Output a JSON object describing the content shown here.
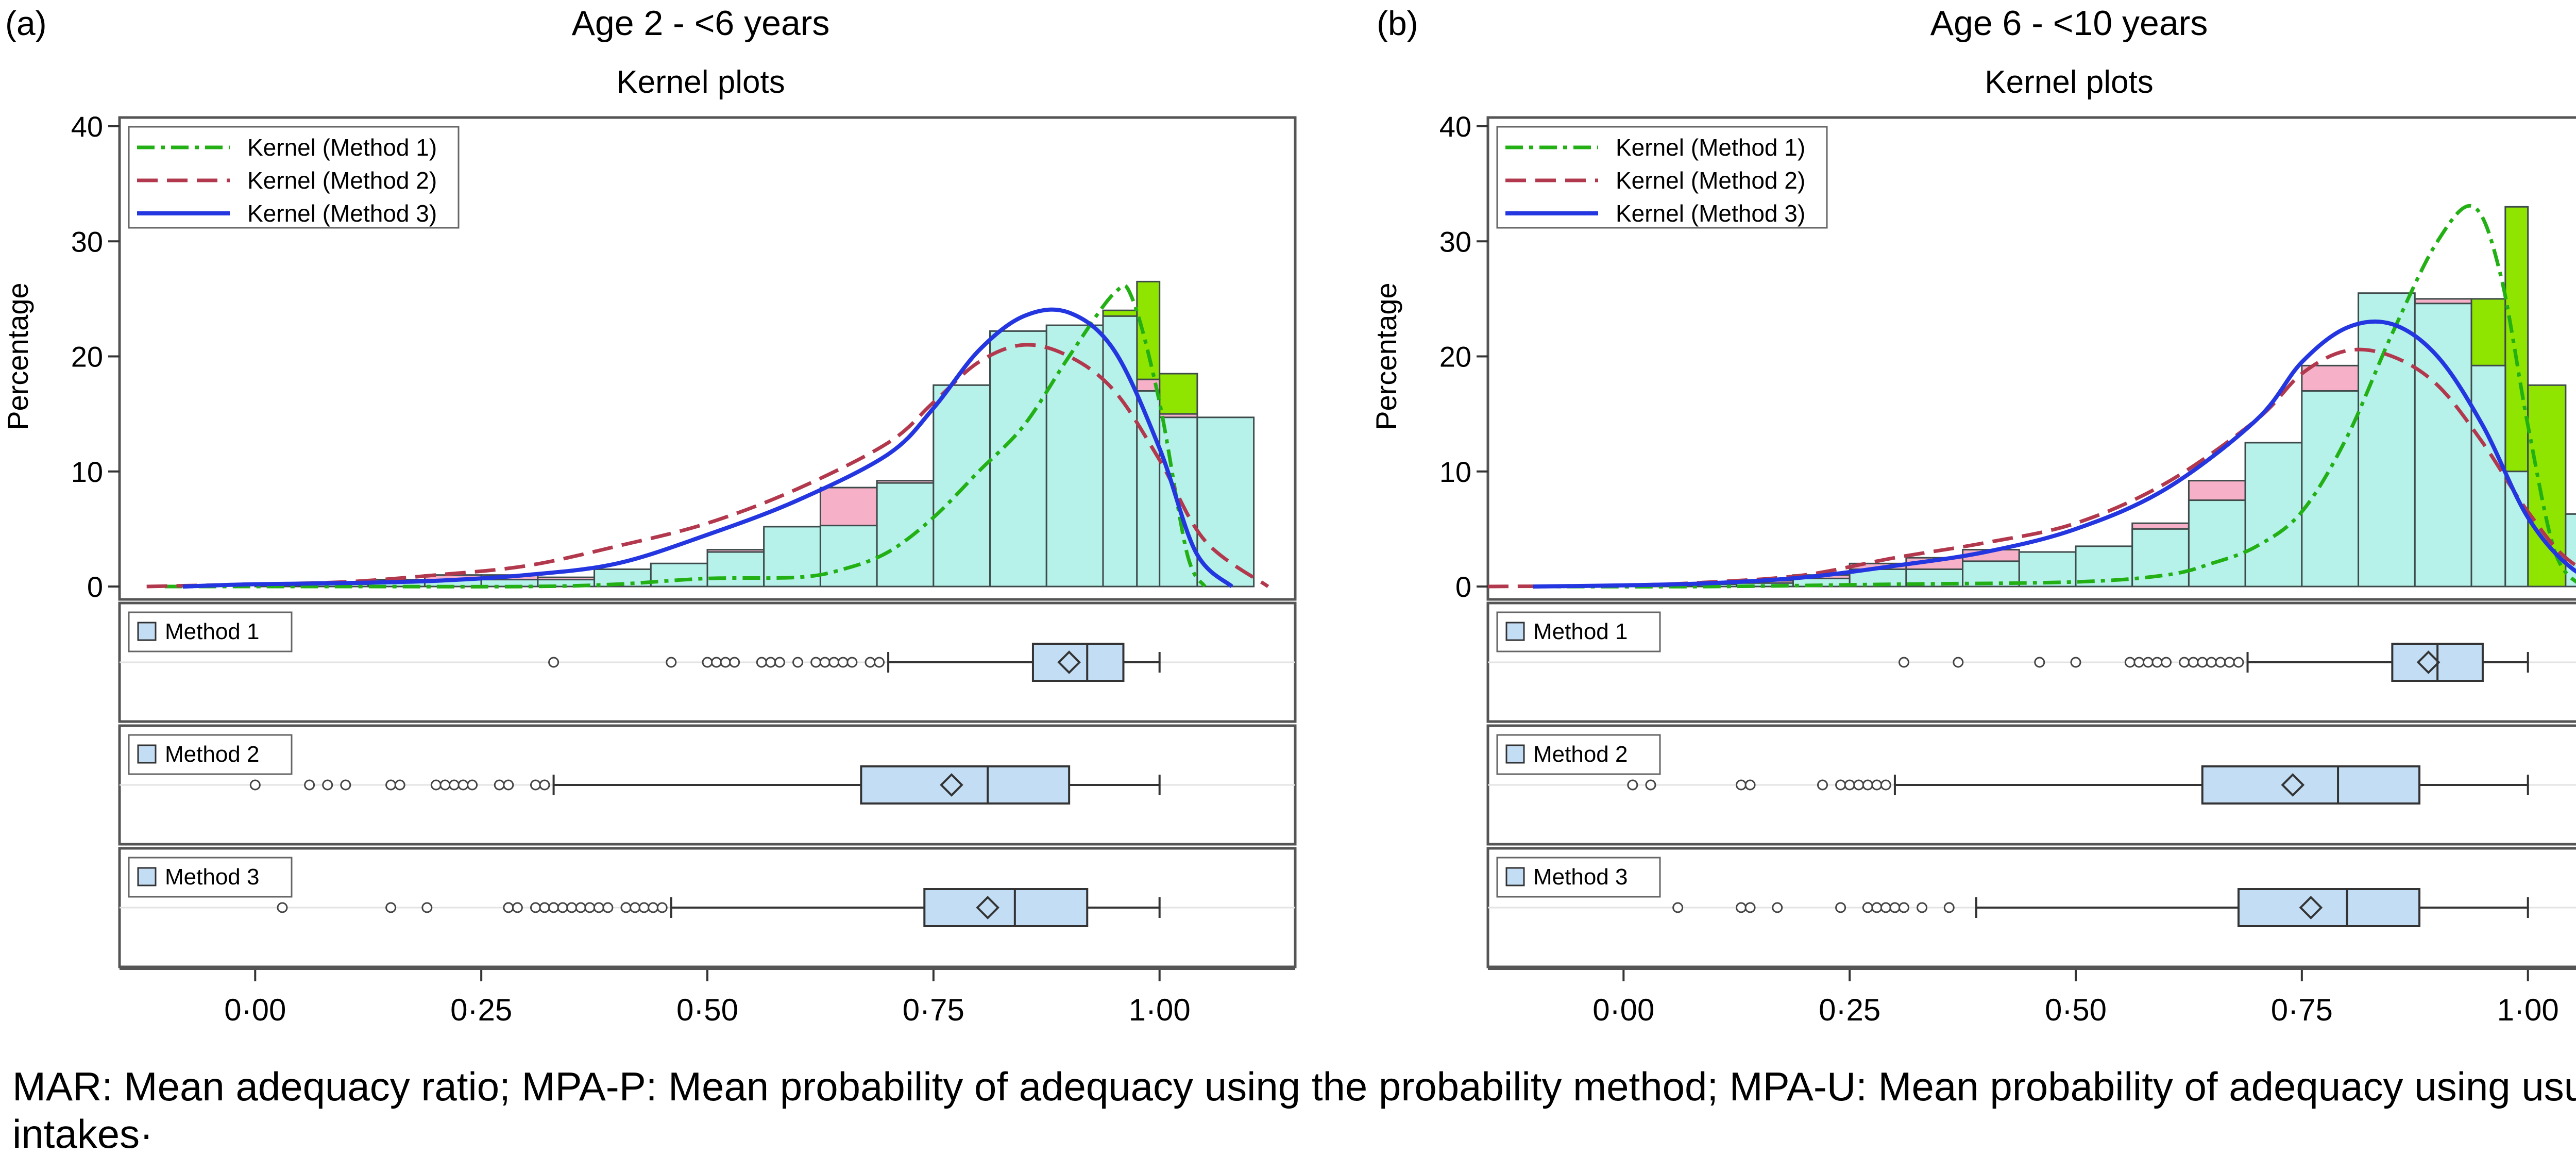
{
  "colors": {
    "method1": "#22b014",
    "method2": "#b2394d",
    "method3": "#2336e0",
    "bar_method1": "#8fe400",
    "bar_method2": "#f6b1c9",
    "bar_method3": "#b6f1ea",
    "box_fill": "#c3ddf4"
  },
  "caption": "MAR: Mean adequacy ratio; MPA-P: Mean probability of adequacy using the probability method; MPA-U: Mean probability of adequacy using usual intakes·",
  "chart_data": [
    {
      "type": "bar",
      "panel_label": "(a)",
      "title": "Age 2 - <6 years",
      "subtitle": "Kernel plots",
      "ylabel": "Percentage",
      "xlabel": "",
      "xlim": [
        -0.15,
        1.15
      ],
      "ylim": [
        0,
        40
      ],
      "y_ticks": [
        0,
        10,
        20,
        30,
        40
      ],
      "x_ticks": [
        0,
        0.25,
        0.5,
        0.75,
        1.0
      ],
      "x_tick_labels": [
        "0·00",
        "0·25",
        "0·50",
        "0·75",
        "1·00"
      ],
      "legend": [
        "Kernel (Method 1)",
        "Kernel (Method 2)",
        "Kernel (Method 3)"
      ],
      "legend_position": "top-left",
      "bin_edges": [
        0.0,
        0.0625,
        0.125,
        0.1875,
        0.25,
        0.3125,
        0.375,
        0.4375,
        0.5,
        0.5625,
        0.625,
        0.6875,
        0.75,
        0.8125,
        0.875,
        0.9375,
        0.975,
        1.0,
        1.0417
      ],
      "histograms": [
        {
          "name": "Method 1",
          "values": [
            0.0,
            0.0,
            0.0,
            0.0,
            0.0,
            0.0,
            0.2,
            0.2,
            0.6,
            0.8,
            1.0,
            2.0,
            4.0,
            8.0,
            16.0,
            24.0,
            26.5,
            18.5,
            0.0
          ]
        },
        {
          "name": "Method 2",
          "values": [
            0.2,
            0.4,
            0.6,
            1.0,
            1.0,
            0.8,
            1.5,
            2.0,
            3.2,
            5.0,
            8.6,
            9.2,
            17.5,
            21.8,
            22.7,
            20.0,
            18.0,
            15.0,
            0.0
          ]
        },
        {
          "name": "Method 3",
          "values": [
            0.1,
            0.2,
            0.4,
            0.6,
            0.6,
            0.6,
            1.5,
            2.0,
            3.0,
            5.2,
            5.3,
            9.0,
            17.5,
            22.2,
            22.7,
            23.5,
            17.0,
            14.7,
            14.7
          ]
        }
      ],
      "kernels": [
        {
          "name": "Kernel (Method 1)",
          "x": [
            -0.1,
            0.1,
            0.3,
            0.4,
            0.5,
            0.6,
            0.65,
            0.7,
            0.75,
            0.8,
            0.85,
            0.9,
            0.95,
            0.97,
            1.0,
            1.03,
            1.05
          ],
          "y": [
            0.0,
            0.0,
            0.0,
            0.2,
            0.7,
            0.8,
            1.5,
            3.0,
            6.0,
            10.0,
            14.0,
            20.0,
            25.5,
            25.0,
            16.0,
            3.0,
            0.0
          ]
        },
        {
          "name": "Kernel (Method 2)",
          "x": [
            -0.12,
            0.0,
            0.1,
            0.2,
            0.3,
            0.4,
            0.5,
            0.6,
            0.7,
            0.75,
            0.8,
            0.85,
            0.9,
            0.95,
            1.0,
            1.05,
            1.12
          ],
          "y": [
            0.0,
            0.2,
            0.4,
            1.0,
            1.8,
            3.5,
            5.5,
            8.5,
            12.5,
            16.0,
            19.5,
            21.0,
            20.0,
            17.0,
            11.0,
            4.0,
            0.0
          ]
        },
        {
          "name": "Kernel (Method 3)",
          "x": [
            -0.08,
            0.0,
            0.1,
            0.2,
            0.3,
            0.4,
            0.5,
            0.6,
            0.7,
            0.75,
            0.8,
            0.85,
            0.9,
            0.95,
            1.0,
            1.04,
            1.08
          ],
          "y": [
            0.0,
            0.2,
            0.3,
            0.5,
            1.0,
            2.0,
            4.5,
            7.5,
            11.5,
            15.5,
            20.5,
            23.5,
            23.8,
            20.5,
            12.0,
            3.0,
            0.0
          ]
        }
      ],
      "boxplots": [
        {
          "name": "Method 1",
          "whisker_low": 0.7,
          "q1": 0.86,
          "median": 0.92,
          "q3": 0.96,
          "whisker_high": 1.0,
          "mean": 0.9,
          "outliers": [
            0.33,
            0.46,
            0.5,
            0.51,
            0.52,
            0.53,
            0.56,
            0.57,
            0.58,
            0.6,
            0.62,
            0.63,
            0.64,
            0.65,
            0.66,
            0.68,
            0.69
          ]
        },
        {
          "name": "Method 2",
          "whisker_low": 0.33,
          "q1": 0.67,
          "median": 0.81,
          "q3": 0.9,
          "whisker_high": 1.0,
          "mean": 0.77,
          "outliers": [
            0.0,
            0.06,
            0.08,
            0.1,
            0.15,
            0.16,
            0.2,
            0.21,
            0.22,
            0.23,
            0.24,
            0.27,
            0.28,
            0.31,
            0.32
          ]
        },
        {
          "name": "Method 3",
          "whisker_low": 0.46,
          "q1": 0.74,
          "median": 0.84,
          "q3": 0.92,
          "whisker_high": 1.0,
          "mean": 0.81,
          "outliers": [
            0.03,
            0.15,
            0.19,
            0.28,
            0.29,
            0.31,
            0.32,
            0.33,
            0.34,
            0.35,
            0.36,
            0.37,
            0.38,
            0.39,
            0.41,
            0.42,
            0.43,
            0.44,
            0.45
          ]
        }
      ]
    },
    {
      "type": "bar",
      "panel_label": "(b)",
      "title": "Age 6 - <10 years",
      "subtitle": "Kernel plots",
      "ylabel": "Percentage",
      "xlabel": "",
      "xlim": [
        -0.15,
        1.15
      ],
      "ylim": [
        0,
        40
      ],
      "y_ticks": [
        0,
        10,
        20,
        30,
        40
      ],
      "x_ticks": [
        0,
        0.25,
        0.5,
        0.75,
        1.0
      ],
      "x_tick_labels": [
        "0·00",
        "0·25",
        "0·50",
        "0·75",
        "1·00"
      ],
      "legend": [
        "Kernel (Method 1)",
        "Kernel (Method 2)",
        "Kernel (Method 3)"
      ],
      "legend_position": "top-left",
      "bin_edges": [
        0.0,
        0.0625,
        0.125,
        0.1875,
        0.25,
        0.3125,
        0.375,
        0.4375,
        0.5,
        0.5625,
        0.625,
        0.6875,
        0.75,
        0.8125,
        0.875,
        0.9375,
        0.975,
        1.0,
        1.0417
      ],
      "histograms": [
        {
          "name": "Method 1",
          "values": [
            0.0,
            0.0,
            0.0,
            0.0,
            0.0,
            0.0,
            0.2,
            0.2,
            0.4,
            0.6,
            1.0,
            2.0,
            3.5,
            6.0,
            13.0,
            25.0,
            33.0,
            17.5,
            6.3
          ]
        },
        {
          "name": "Method 2",
          "values": [
            0.2,
            0.3,
            0.5,
            1.0,
            2.0,
            2.5,
            3.2,
            2.8,
            3.2,
            5.5,
            9.2,
            12.5,
            19.2,
            24.5,
            25.0,
            19.2,
            10.0,
            0.0,
            0.0
          ]
        },
        {
          "name": "Method 3",
          "values": [
            0.1,
            0.2,
            0.3,
            0.7,
            1.5,
            1.5,
            2.2,
            3.0,
            3.5,
            5.0,
            7.5,
            12.5,
            17.0,
            25.5,
            24.6,
            19.2,
            10.0,
            0.0,
            6.3
          ]
        }
      ],
      "kernels": [
        {
          "name": "Kernel (Method 1)",
          "x": [
            -0.1,
            0.1,
            0.3,
            0.5,
            0.6,
            0.65,
            0.7,
            0.75,
            0.8,
            0.85,
            0.9,
            0.94,
            0.97,
            1.0,
            1.03,
            1.06
          ],
          "y": [
            0.0,
            0.0,
            0.2,
            0.4,
            1.0,
            2.0,
            3.5,
            6.5,
            13.0,
            22.0,
            30.0,
            33.0,
            27.0,
            14.0,
            3.0,
            0.0
          ]
        },
        {
          "name": "Kernel (Method 2)",
          "x": [
            -0.15,
            0.0,
            0.1,
            0.2,
            0.3,
            0.4,
            0.5,
            0.6,
            0.7,
            0.75,
            0.8,
            0.85,
            0.9,
            0.95,
            1.0,
            1.05,
            1.12
          ],
          "y": [
            0.0,
            0.1,
            0.4,
            1.0,
            2.5,
            3.8,
            5.5,
            9.0,
            14.5,
            18.5,
            20.5,
            20.0,
            17.5,
            12.5,
            6.5,
            2.0,
            0.0
          ]
        },
        {
          "name": "Kernel (Method 3)",
          "x": [
            -0.1,
            0.0,
            0.1,
            0.2,
            0.3,
            0.4,
            0.5,
            0.6,
            0.7,
            0.75,
            0.8,
            0.85,
            0.9,
            0.95,
            1.0,
            1.05,
            1.1
          ],
          "y": [
            0.0,
            0.1,
            0.3,
            0.8,
            1.8,
            3.0,
            5.0,
            8.5,
            14.5,
            19.5,
            22.5,
            22.8,
            20.0,
            14.0,
            6.0,
            1.5,
            0.0
          ]
        }
      ],
      "boxplots": [
        {
          "name": "Method 1",
          "whisker_low": 0.69,
          "q1": 0.85,
          "median": 0.9,
          "q3": 0.95,
          "whisker_high": 1.0,
          "mean": 0.89,
          "outliers": [
            0.31,
            0.37,
            0.46,
            0.5,
            0.56,
            0.57,
            0.58,
            0.59,
            0.6,
            0.62,
            0.63,
            0.64,
            0.65,
            0.66,
            0.67,
            0.68
          ]
        },
        {
          "name": "Method 2",
          "whisker_low": 0.3,
          "q1": 0.64,
          "median": 0.79,
          "q3": 0.88,
          "whisker_high": 1.0,
          "mean": 0.74,
          "outliers": [
            0.01,
            0.03,
            0.13,
            0.14,
            0.22,
            0.24,
            0.25,
            0.26,
            0.27,
            0.28,
            0.29
          ]
        },
        {
          "name": "Method 3",
          "whisker_low": 0.39,
          "q1": 0.68,
          "median": 0.8,
          "q3": 0.88,
          "whisker_high": 1.0,
          "mean": 0.76,
          "outliers": [
            0.06,
            0.13,
            0.14,
            0.17,
            0.24,
            0.27,
            0.28,
            0.29,
            0.3,
            0.31,
            0.33,
            0.36
          ]
        }
      ]
    }
  ]
}
